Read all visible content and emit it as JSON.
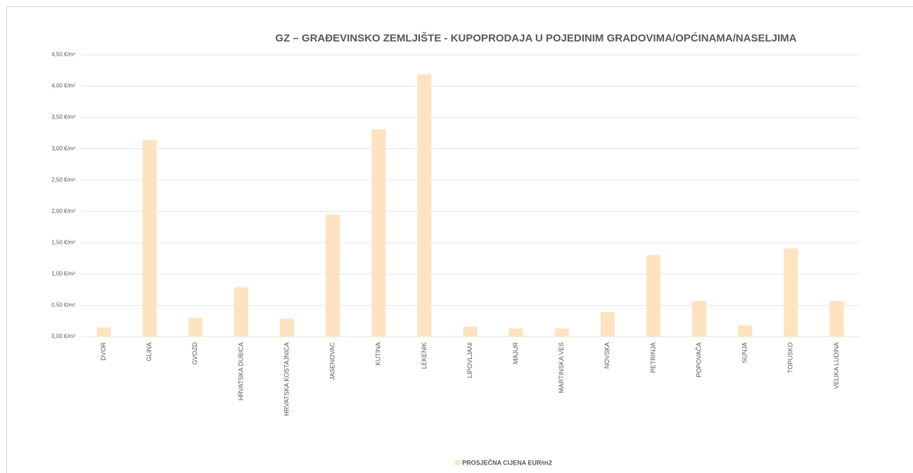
{
  "chart_data": {
    "type": "bar",
    "title": "GZ – GRAĐEVINSKO ZEMLJIŠTE - KUPOPRODAJA  U POJEDINIM GRADOVIMA/OPĆINAMA/NASELJIMA",
    "categories": [
      "DVOR",
      "GLINA",
      "GVOZD",
      "HRVATSKA DUBICA",
      "HRVATSKA KOSTAJNICA",
      "JASENOVAC",
      "KUTINA",
      "LEKENIK",
      "LIPOVLJANI",
      "MAJUR",
      "MARTINSKA VES",
      "NOVSKA",
      "PETRINJA",
      "POPOVAČA",
      "SUNJA",
      "TOPUSKO",
      "VELIKA LUDINA"
    ],
    "series": [
      {
        "name": "PROSJEČNA CIJENA EUR/m2",
        "color": "#fde3bf",
        "values": [
          0.15,
          3.14,
          0.3,
          0.79,
          0.29,
          1.95,
          3.31,
          4.19,
          0.16,
          0.13,
          0.13,
          0.39,
          1.3,
          0.57,
          0.18,
          1.41,
          0.57
        ]
      }
    ],
    "ylim": [
      0,
      4.5
    ],
    "yticks": [
      {
        "value": 0,
        "label": "0,00 €/m²"
      },
      {
        "value": 0.5,
        "label": "0,50 €/m²"
      },
      {
        "value": 1,
        "label": "1,00 €/m²"
      },
      {
        "value": 1.5,
        "label": "1,50 €/m²"
      },
      {
        "value": 2,
        "label": "2,00 €/m²"
      },
      {
        "value": 2.5,
        "label": "2,50 €/m²"
      },
      {
        "value": 3,
        "label": "3,00 €/m²"
      },
      {
        "value": 3.5,
        "label": "3,50 €/m²"
      },
      {
        "value": 4,
        "label": "4,00 €/m²"
      },
      {
        "value": 4.5,
        "label": "4,50 €/m²"
      }
    ],
    "grid": true,
    "legend": "bottom"
  }
}
